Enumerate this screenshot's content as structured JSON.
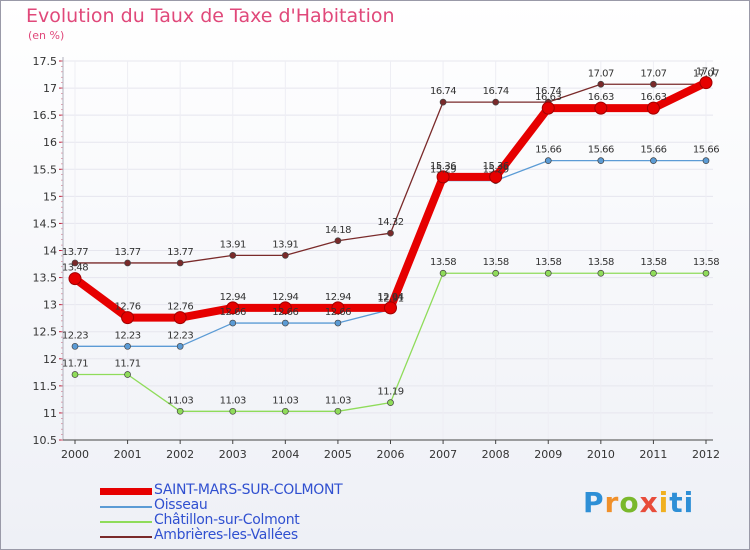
{
  "chart_data": {
    "type": "line",
    "title": "Evolution du Taux de Taxe d'Habitation",
    "unit_label": "(en %)",
    "x": [
      "2000",
      "2001",
      "2002",
      "2003",
      "2004",
      "2005",
      "2006",
      "2007",
      "2008",
      "2009",
      "2010",
      "2011",
      "2012"
    ],
    "ylim": [
      10.5,
      17.5
    ],
    "y_ticks": [
      "10.5",
      "11",
      "11.5",
      "12",
      "12.5",
      "13",
      "13.5",
      "14",
      "14.5",
      "15",
      "15.5",
      "16",
      "16.5",
      "17",
      "17.5"
    ],
    "series": [
      {
        "name": "SAINT-MARS-SUR-COLMONT",
        "color": "#e60000",
        "values": [
          13.48,
          12.76,
          12.76,
          12.94,
          12.94,
          12.94,
          12.94,
          15.36,
          15.36,
          16.63,
          16.63,
          16.63,
          17.1
        ],
        "labels": [
          "13.48",
          "12.76",
          "12.76",
          "12.94",
          "12.94",
          "12.94",
          "12.94",
          "15.36",
          "15.36",
          "16.63",
          "16.63",
          "16.63",
          "17.1"
        ]
      },
      {
        "name": "Oisseau",
        "color": "#5b9bd5",
        "values": [
          12.23,
          12.23,
          12.23,
          12.66,
          12.66,
          12.66,
          12.91,
          15.29,
          15.29,
          15.66,
          15.66,
          15.66,
          15.66
        ],
        "labels": [
          "12.23",
          "12.23",
          "12.23",
          "12.66",
          "12.66",
          "12.66",
          "12.91",
          "15.29",
          "15.29",
          "15.66",
          "15.66",
          "15.66",
          "15.66"
        ]
      },
      {
        "name": "Châtillon-sur-Colmont",
        "color": "#8fdc5a",
        "values": [
          11.71,
          11.71,
          11.03,
          11.03,
          11.03,
          11.03,
          11.19,
          13.58,
          13.58,
          13.58,
          13.58,
          13.58,
          13.58
        ],
        "labels": [
          "11.71",
          "11.71",
          "11.03",
          "11.03",
          "11.03",
          "11.03",
          "11.19",
          "13.58",
          "13.58",
          "13.58",
          "13.58",
          "13.58",
          "13.58"
        ]
      },
      {
        "name": "Ambrières-les-Vallées",
        "color": "#7a2a2a",
        "values": [
          13.77,
          13.77,
          13.77,
          13.91,
          13.91,
          14.18,
          14.32,
          16.74,
          16.74,
          16.74,
          17.07,
          17.07,
          17.07
        ],
        "labels": [
          "13.77",
          "13.77",
          "13.77",
          "13.91",
          "13.91",
          "14.18",
          "14.32",
          "16.74",
          "16.74",
          "16.74",
          "17.07",
          "17.07",
          "17.07"
        ]
      }
    ],
    "legend_position": "bottom-left"
  },
  "brand": {
    "p": "P",
    "r": "r",
    "o": "o",
    "x": "x",
    "i": "i",
    "t": "ti"
  }
}
